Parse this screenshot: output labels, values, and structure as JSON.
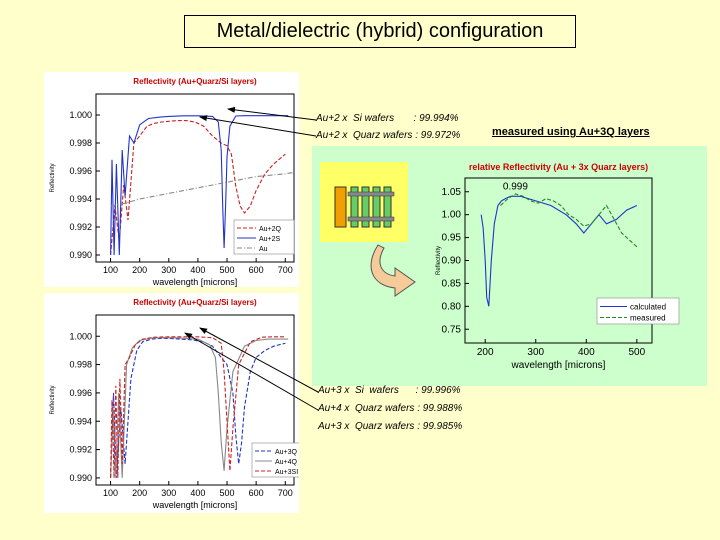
{
  "slide": {
    "title": "Metal/dielectric (hybrid) configuration",
    "measured_note": "measured using Au+3Q layers"
  },
  "annotations_top": [
    {
      "text": "Au+2 x  Si wafers       : 99.994%"
    },
    {
      "text": "Au+2 x  Quarz wafers : 99.972%"
    }
  ],
  "annotations_bottom": [
    {
      "text": "Au+3 x  Si  wafers      : 99.996%"
    },
    {
      "text": "Au+4 x  Quarz wafers : 99.988%"
    },
    {
      "text": "Au+3 x  Quarz wafers : 99.985%"
    }
  ],
  "colors": {
    "background": "#FFFFCC",
    "right_panel": "#CCFFCC",
    "title_red": "#cc0000",
    "blue": "#2233cc",
    "red": "#cc2222",
    "gray": "#888888",
    "green": "#228822",
    "arrow_fill": "#f5cc99"
  },
  "chart_data": [
    {
      "type": "line",
      "title": "Reflectivity (Au+Quarz/Si layers)",
      "xlabel": "wavelength [microns]",
      "ylabel": "Reflectivity",
      "xlim": [
        50,
        730
      ],
      "ylim": [
        0.9895,
        1.0015
      ],
      "xticks": [
        100,
        200,
        300,
        400,
        500,
        600,
        700
      ],
      "yticks": [
        0.99,
        0.992,
        0.994,
        0.996,
        0.998,
        1.0
      ],
      "ytick_labels": [
        "0.990",
        "0.992",
        "0.994",
        "0.996",
        "0.998",
        "1.000"
      ],
      "legend_position": "bottom-right",
      "series": [
        {
          "name": "Au+2Q",
          "style": "dashed",
          "color": "red",
          "x": [
            100,
            115,
            130,
            145,
            160,
            180,
            200,
            225,
            250,
            275,
            300,
            330,
            360,
            390,
            420,
            450,
            480,
            500,
            515,
            530,
            545,
            560,
            580,
            600,
            630,
            660,
            700
          ],
          "y": [
            0.99,
            0.9935,
            0.991,
            0.995,
            0.9925,
            0.998,
            0.9985,
            0.9992,
            0.9994,
            0.9995,
            0.99955,
            0.9996,
            0.9996,
            0.9995,
            0.9992,
            0.9985,
            0.998,
            0.9978,
            0.9972,
            0.9949,
            0.9935,
            0.993,
            0.9935,
            0.9946,
            0.9958,
            0.9965,
            0.9972
          ]
        },
        {
          "name": "Au+2S",
          "style": "solid",
          "color": "blue",
          "x": [
            100,
            105,
            112,
            120,
            130,
            140,
            150,
            165,
            180,
            200,
            230,
            270,
            300,
            350,
            400,
            450,
            470,
            480,
            485,
            490,
            495,
            500,
            510,
            530,
            560,
            590,
            630,
            660,
            690,
            710
          ],
          "y": [
            0.99,
            0.9968,
            0.99,
            0.9965,
            0.99,
            0.9975,
            0.9942,
            0.9985,
            0.998,
            0.9993,
            0.99975,
            0.99985,
            0.9999,
            0.99994,
            0.99994,
            0.9999,
            0.9995,
            0.9975,
            0.9935,
            0.9905,
            0.9935,
            0.997,
            0.9992,
            0.99993,
            0.99995,
            0.99995,
            0.99995,
            0.99995,
            0.99995,
            0.99995
          ]
        },
        {
          "name": "Au",
          "style": "dash-dot",
          "color": "gray",
          "x": [
            100,
            150,
            200,
            250,
            300,
            350,
            400,
            450,
            500,
            550,
            600,
            650,
            700,
            730
          ],
          "y": [
            0.9935,
            0.9937,
            0.994,
            0.9942,
            0.9944,
            0.9946,
            0.9948,
            0.995,
            0.9952,
            0.9954,
            0.9956,
            0.9957,
            0.9958,
            0.9959
          ]
        }
      ]
    },
    {
      "type": "line",
      "title": "Reflectivity (Au+Quarz/Si layers)",
      "xlabel": "wavelength [microns]",
      "ylabel": "Reflectivity",
      "xlim": [
        50,
        730
      ],
      "ylim": [
        0.9895,
        1.0015
      ],
      "xticks": [
        100,
        200,
        300,
        400,
        500,
        600,
        700
      ],
      "yticks": [
        0.99,
        0.992,
        0.994,
        0.996,
        0.998,
        1.0
      ],
      "ytick_labels": [
        "0.990",
        "0.992",
        "0.994",
        "0.996",
        "0.998",
        "1.000"
      ],
      "legend_position": "bottom-right",
      "series": [
        {
          "name": "Au+3Q",
          "style": "dashed",
          "color": "blue",
          "x": [
            100,
            110,
            120,
            135,
            150,
            170,
            190,
            210,
            240,
            270,
            300,
            340,
            380,
            420,
            450,
            480,
            500,
            520,
            530,
            540,
            550,
            560,
            580,
            600,
            630,
            660,
            700
          ],
          "y": [
            0.99,
            0.996,
            0.99,
            0.995,
            0.991,
            0.997,
            0.999,
            0.9996,
            0.9998,
            0.99985,
            0.99985,
            0.9998,
            0.99975,
            0.9996,
            0.9993,
            0.9985,
            0.998,
            0.996,
            0.993,
            0.991,
            0.9925,
            0.995,
            0.9975,
            0.9985,
            0.999,
            0.9993,
            0.9995
          ]
        },
        {
          "name": "Au+4Q",
          "style": "solid",
          "color": "gray",
          "x": [
            100,
            108,
            118,
            128,
            140,
            155,
            175,
            200,
            240,
            280,
            320,
            360,
            400,
            440,
            460,
            470,
            480,
            490,
            500,
            520,
            560,
            600,
            640,
            680,
            710
          ],
          "y": [
            0.99,
            0.995,
            0.99,
            0.996,
            0.99,
            0.998,
            0.9992,
            0.9997,
            0.99988,
            0.9999,
            0.9999,
            0.99985,
            0.9998,
            0.9994,
            0.9985,
            0.996,
            0.9925,
            0.9905,
            0.9935,
            0.9975,
            0.9993,
            0.9997,
            0.9998,
            0.9998,
            0.9998
          ]
        },
        {
          "name": "Au+3SI",
          "style": "dashed",
          "color": "red",
          "x": [
            100,
            105,
            112,
            118,
            125,
            132,
            140,
            150,
            165,
            185,
            210,
            250,
            300,
            350,
            400,
            450,
            480,
            490,
            500,
            510,
            520,
            540,
            580,
            620,
            660,
            700
          ],
          "y": [
            0.99,
            0.9955,
            0.99,
            0.9965,
            0.99,
            0.997,
            0.991,
            0.998,
            0.9985,
            0.9994,
            0.9998,
            0.99993,
            0.99996,
            0.99996,
            0.99996,
            0.9999,
            0.9995,
            0.9975,
            0.994,
            0.9905,
            0.9935,
            0.998,
            0.9996,
            0.99993,
            0.99996,
            0.99996
          ]
        }
      ]
    },
    {
      "type": "line",
      "title": "relative Reflectivity (Au + 3x Quarz layers)",
      "xlabel": "wavelength [microns]",
      "ylabel": "Reflectivity",
      "xlim": [
        160,
        530
      ],
      "ylim": [
        0.72,
        1.08
      ],
      "xticks": [
        200,
        300,
        400,
        500
      ],
      "yticks": [
        0.75,
        0.8,
        0.85,
        0.9,
        0.95,
        1.0,
        1.05
      ],
      "ytick_labels": [
        "0.75",
        "0.80",
        "0.85",
        "0.90",
        "0.95",
        "1.00",
        "1.05"
      ],
      "annotation": "0.999",
      "legend_position": "bottom-right",
      "series": [
        {
          "name": "calculated",
          "style": "solid",
          "color": "blue",
          "x": [
            192,
            196,
            200,
            203,
            207,
            212,
            218,
            225,
            232,
            240,
            250,
            270,
            300,
            330,
            360,
            380,
            395,
            410,
            425,
            440,
            460,
            480,
            500
          ],
          "y": [
            1.0,
            0.97,
            0.9,
            0.82,
            0.8,
            0.9,
            0.98,
            1.02,
            1.03,
            1.035,
            1.04,
            1.04,
            1.03,
            1.02,
            1.0,
            0.98,
            0.96,
            0.98,
            1.0,
            0.98,
            0.99,
            1.01,
            1.02
          ]
        },
        {
          "name": "measured",
          "style": "dashed",
          "color": "green",
          "x": [
            230,
            245,
            260,
            275,
            290,
            305,
            320,
            335,
            350,
            365,
            380,
            395,
            410,
            425,
            440,
            450,
            460,
            470,
            480,
            490,
            500
          ],
          "y": [
            1.02,
            1.035,
            1.045,
            1.04,
            1.03,
            1.025,
            1.035,
            1.03,
            1.02,
            1.0,
            0.99,
            0.975,
            0.98,
            1.0,
            1.02,
            1.0,
            0.98,
            0.96,
            0.95,
            0.94,
            0.93
          ]
        }
      ]
    }
  ]
}
